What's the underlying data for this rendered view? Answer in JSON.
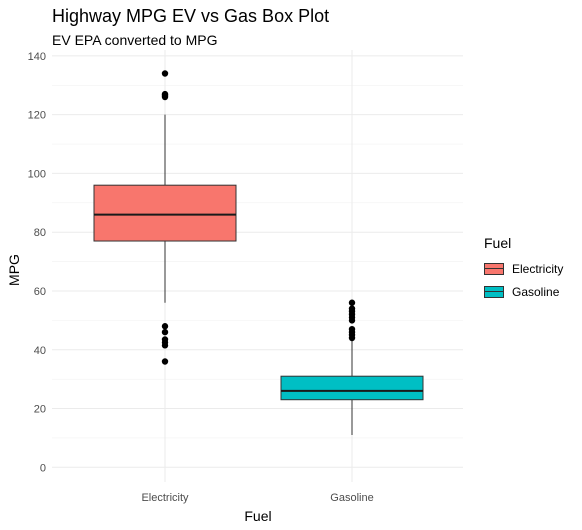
{
  "chart_data": {
    "type": "box",
    "title": "Highway MPG EV vs Gas Box Plot",
    "subtitle": "EV EPA converted to MPG",
    "xlabel": "Fuel",
    "ylabel": "MPG",
    "ylim": [
      -5,
      142
    ],
    "yticks": [
      0,
      20,
      40,
      60,
      80,
      100,
      120,
      140
    ],
    "categories": [
      "Electricity",
      "Gasoline"
    ],
    "grid": true,
    "legend": {
      "title": "Fuel",
      "position": "right",
      "entries": [
        "Electricity",
        "Gasoline"
      ]
    },
    "series": [
      {
        "name": "Electricity",
        "color": "#F8766D",
        "min": 56,
        "q1": 77,
        "median": 86,
        "q3": 96,
        "max": 120,
        "outliers": [
          36,
          41.5,
          42.5,
          43.5,
          46,
          48,
          126,
          126.5,
          127,
          134
        ]
      },
      {
        "name": "Gasoline",
        "color": "#00BFC4",
        "min": 11,
        "q1": 23,
        "median": 26,
        "q3": 31,
        "max": 43,
        "outliers": [
          44,
          45,
          46,
          47,
          50,
          51,
          52,
          53,
          54,
          56
        ]
      }
    ]
  }
}
